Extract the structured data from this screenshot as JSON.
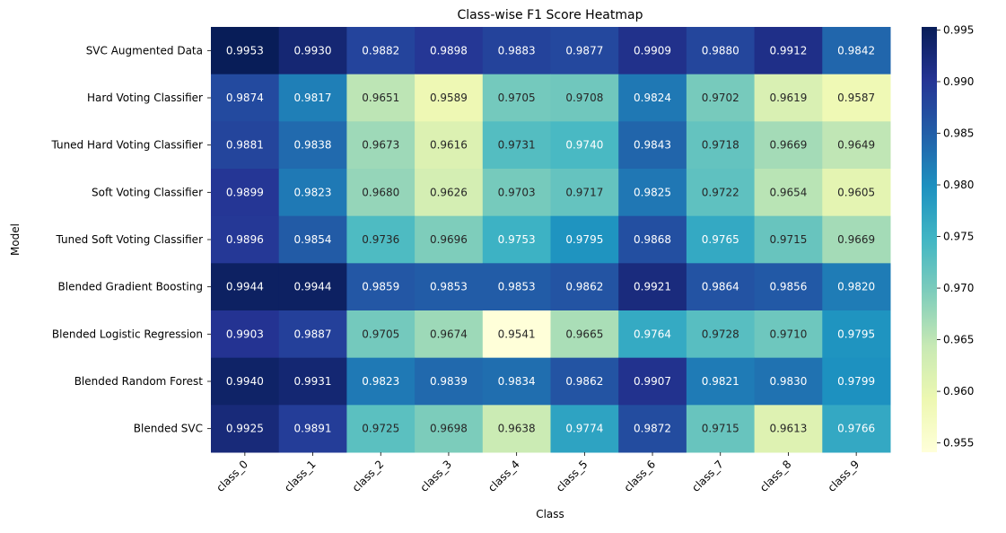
{
  "chart_data": {
    "type": "heatmap",
    "title": "Class-wise F1 Score Heatmap",
    "xlabel": "Class",
    "ylabel": "Model",
    "colormap": "YlGnBu",
    "colormap_stops": [
      "#ffffd9",
      "#edf8b1",
      "#c7e9b4",
      "#7fcdbb",
      "#41b6c4",
      "#1d91c0",
      "#225ea8",
      "#253494",
      "#081d58"
    ],
    "color_range": [
      0.9541,
      0.9953
    ],
    "colorbar_ticks": [
      "0.955",
      "0.960",
      "0.965",
      "0.970",
      "0.975",
      "0.980",
      "0.985",
      "0.990",
      "0.995"
    ],
    "colorbar_tick_values": [
      0.955,
      0.96,
      0.965,
      0.97,
      0.975,
      0.98,
      0.985,
      0.99,
      0.995
    ],
    "columns": [
      "class_0",
      "class_1",
      "class_2",
      "class_3",
      "class_4",
      "class_5",
      "class_6",
      "class_7",
      "class_8",
      "class_9"
    ],
    "rows": [
      "SVC Augmented Data",
      "Hard Voting Classifier",
      "Tuned Hard Voting Classifier",
      "Soft Voting Classifier",
      "Tuned Soft Voting Classifier",
      "Blended Gradient Boosting",
      "Blended Logistic Regression",
      "Blended Random Forest",
      "Blended SVC"
    ],
    "values": [
      [
        0.9953,
        0.993,
        0.9882,
        0.9898,
        0.9883,
        0.9877,
        0.9909,
        0.988,
        0.9912,
        0.9842
      ],
      [
        0.9874,
        0.9817,
        0.9651,
        0.9589,
        0.9705,
        0.9708,
        0.9824,
        0.9702,
        0.9619,
        0.9587
      ],
      [
        0.9881,
        0.9838,
        0.9673,
        0.9616,
        0.9731,
        0.974,
        0.9843,
        0.9718,
        0.9669,
        0.9649
      ],
      [
        0.9899,
        0.9823,
        0.968,
        0.9626,
        0.9703,
        0.9717,
        0.9825,
        0.9722,
        0.9654,
        0.9605
      ],
      [
        0.9896,
        0.9854,
        0.9736,
        0.9696,
        0.9753,
        0.9795,
        0.9868,
        0.9765,
        0.9715,
        0.9669
      ],
      [
        0.9944,
        0.9944,
        0.9859,
        0.9853,
        0.9853,
        0.9862,
        0.9921,
        0.9864,
        0.9856,
        0.982
      ],
      [
        0.9903,
        0.9887,
        0.9705,
        0.9674,
        0.9541,
        0.9665,
        0.9764,
        0.9728,
        0.971,
        0.9795
      ],
      [
        0.994,
        0.9931,
        0.9823,
        0.9839,
        0.9834,
        0.9862,
        0.9907,
        0.9821,
        0.983,
        0.9799
      ],
      [
        0.9925,
        0.9891,
        0.9725,
        0.9698,
        0.9638,
        0.9774,
        0.9872,
        0.9715,
        0.9613,
        0.9766
      ]
    ]
  }
}
